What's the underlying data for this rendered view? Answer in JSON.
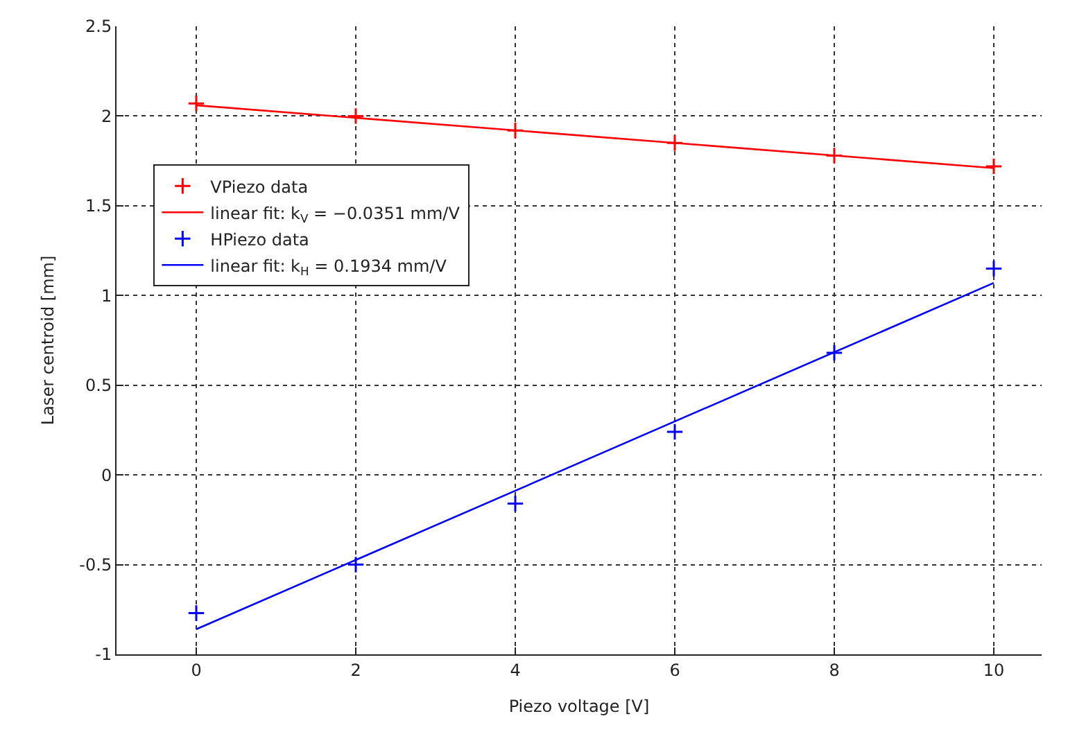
{
  "chart_data": {
    "type": "scatter",
    "xlabel": "Piezo voltage [V]",
    "ylabel": "Laser centroid [mm]",
    "xlim": [
      -1,
      10.6
    ],
    "xticks": [
      0,
      2,
      4,
      6,
      8,
      10
    ],
    "ylim": [
      -1,
      2.5
    ],
    "yticks": [
      -1,
      -0.5,
      0,
      0.5,
      1,
      1.5,
      2,
      2.5
    ],
    "grid": true,
    "legend": "left",
    "series": [
      {
        "name": "VPiezo data",
        "marker": "cross",
        "color": "#ff0000",
        "x": [
          0,
          2,
          4,
          6,
          8,
          10
        ],
        "values": [
          2.07,
          2.0,
          1.92,
          1.85,
          1.78,
          1.72
        ]
      },
      {
        "name": "linear fit: k$_{V}$ = −0.0351 mm/V",
        "type": "line",
        "marker": "none",
        "color": "#ff0000",
        "x": [
          0,
          10
        ],
        "values": [
          2.06,
          1.71
        ]
      },
      {
        "name": "HPiezo data",
        "marker": "cross",
        "color": "#0000ff",
        "x": [
          0,
          2,
          4,
          6,
          8,
          10
        ],
        "values": [
          -0.77,
          -0.5,
          -0.16,
          0.24,
          0.68,
          1.15
        ]
      },
      {
        "name": "linear fit: k$_{H}$ = 0.1934 mm/V",
        "type": "line",
        "marker": "none",
        "color": "#0000ff",
        "x": [
          0,
          10
        ],
        "values": [
          -0.86,
          1.07
        ]
      }
    ]
  }
}
